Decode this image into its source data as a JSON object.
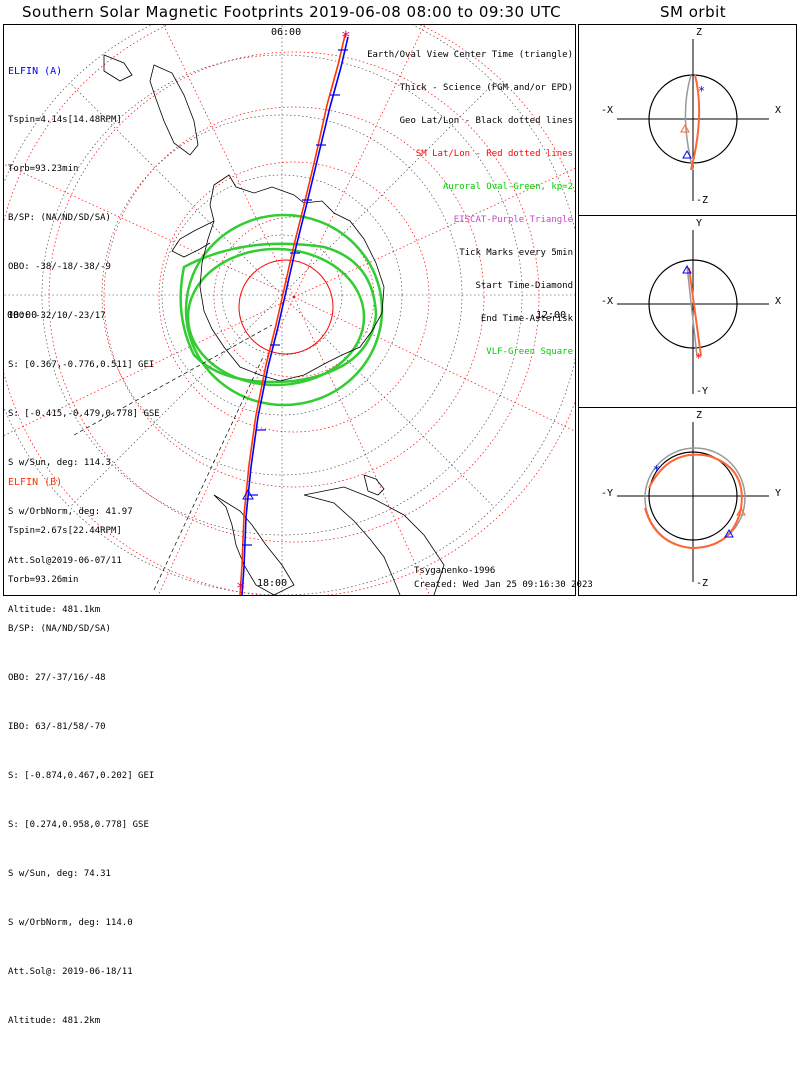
{
  "title": "Southern Solar Magnetic Footprints 2019-06-08 08:00 to 09:30 UTC",
  "orbit_title": "SM orbit",
  "map": {
    "time_labels": {
      "top": "06:00",
      "left": "00:00",
      "right": "12:00",
      "bottom": "18:00"
    },
    "elfin_a": {
      "name": "ELFIN (A)",
      "lines": [
        "Tspin=4.14s[14.48RPM]",
        "Torb=93.23min",
        "B/SP: (NA/ND/SD/SA)",
        "OBO: -38/-18/-38/-9",
        "IBO: -32/10/-23/17",
        "S: [0.367,-0.776,0.511] GEI",
        "S: [-0.415,-0.479,0.778] GSE",
        "S w/Sun, deg: 114.3",
        "S w/OrbNorm, deg: 41.97",
        "Att.Sol@2019-06-07/11",
        "Altitude: 481.1km"
      ]
    },
    "elfin_b": {
      "name": "ELFIN (B)",
      "lines": [
        "Tspin=2.67s[22.44RPM]",
        "Torb=93.26min",
        "B/SP: (NA/ND/SD/SA)",
        "OBO: 27/-37/16/-48",
        "IBO: 63/-81/58/-70",
        "S: [-0.874,0.467,0.202] GEI",
        "S: [0.274,0.958,0.778] GSE",
        "S w/Sun, deg: 74.31",
        "S w/OrbNorm, deg: 114.0",
        "Att.Sol@: 2019-06-18/11",
        "Altitude: 481.2km"
      ]
    },
    "legend": [
      {
        "text": "Earth/Oval View Center Time (triangle)",
        "color": "#000000"
      },
      {
        "text": "Thick - Science (FGM and/or EPD)",
        "color": "#000000"
      },
      {
        "text": "Geo Lat/Lon - Black dotted lines",
        "color": "#000000"
      },
      {
        "text": "SM Lat/Lon - Red dotted lines",
        "color": "#ff0000"
      },
      {
        "text": "Auroral Oval-Green, kp=2",
        "color": "#00cc00"
      },
      {
        "text": "EISCAT-Purple Triangle",
        "color": "#cc44cc"
      },
      {
        "text": "Tick Marks every 5min",
        "color": "#000000"
      },
      {
        "text": "Start Time-Diamond",
        "color": "#000000"
      },
      {
        "text": "End Time-Asterisk",
        "color": "#000000"
      },
      {
        "text": "VLF-Green Square",
        "color": "#00cc00"
      }
    ],
    "credit": "Tsyganenko-1996",
    "created": "Created: Wed Jan 25 09:16:30 2023"
  },
  "orbit_panels": [
    {
      "top": "Z",
      "bottom": "-Z",
      "left": "-X",
      "right": "X"
    },
    {
      "top": "Y",
      "bottom": "-Y",
      "left": "-X",
      "right": "X"
    },
    {
      "top": "Z",
      "bottom": "-Z",
      "left": "-Y",
      "right": "Y"
    }
  ],
  "colors": {
    "elfin_a": "#0000ff",
    "elfin_b": "#ff0000",
    "sm_grid": "#ff0000",
    "oval": "#33cc33",
    "orbit_b": "#ff6633"
  }
}
